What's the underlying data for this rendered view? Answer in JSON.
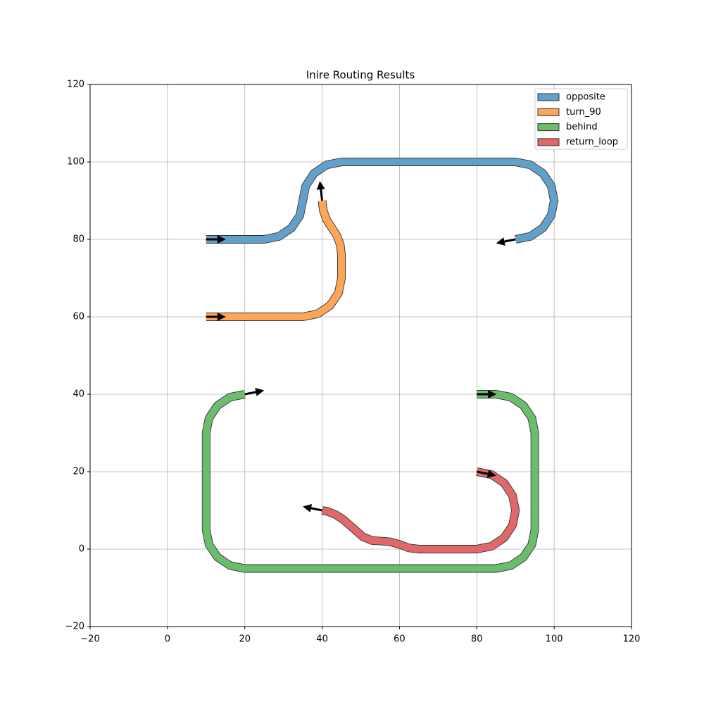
{
  "chart_data": {
    "type": "route",
    "title": "Inire Routing Results",
    "xlim": [
      -20,
      120
    ],
    "ylim": [
      -20,
      120
    ],
    "xticks": [
      {
        "value": -20,
        "label": "−20"
      },
      0,
      20,
      40,
      60,
      80,
      100,
      120
    ],
    "yticks": [
      {
        "value": -20,
        "label": "−20"
      },
      0,
      20,
      40,
      60,
      80,
      100,
      120
    ],
    "grid": true,
    "legend": "upper right",
    "alpha": 0.7,
    "series": [
      {
        "name": "opposite",
        "color": "#1f77b4",
        "x": [
          10,
          25,
          28.83,
          32.07,
          34.24,
          35,
          35.76,
          37.93,
          41.17,
          45,
          90,
          93.83,
          97.07,
          99.24,
          100,
          99.24,
          97.07,
          93.83,
          90
        ],
        "y": [
          80,
          80,
          80.76,
          82.93,
          86.17,
          90,
          93.83,
          97.07,
          99.24,
          100,
          100,
          99.24,
          97.07,
          93.83,
          90,
          86.17,
          82.93,
          80.76,
          80
        ]
      },
      {
        "name": "turn_90",
        "color": "#ff7f0e",
        "x": [
          10,
          35,
          38.83,
          42.07,
          44.24,
          45,
          45,
          44.71,
          43.86,
          42.5,
          41.13,
          40.29,
          40
        ],
        "y": [
          60,
          60,
          60.76,
          62.93,
          66.17,
          70,
          76,
          78.51,
          80.88,
          83,
          85.12,
          87.49,
          90
        ]
      },
      {
        "name": "behind",
        "color": "#2ca02c",
        "x": [
          80,
          85,
          88.83,
          92.07,
          94.24,
          95,
          95,
          94.24,
          92.07,
          88.83,
          85,
          20,
          16.17,
          12.93,
          10.76,
          10,
          10,
          10.76,
          12.93,
          16.17,
          20
        ],
        "y": [
          40,
          40,
          39.24,
          37.07,
          33.83,
          30,
          5,
          1.17,
          -2.07,
          -4.24,
          -5,
          -5,
          -4.24,
          -2.07,
          1.17,
          5,
          30,
          33.83,
          37.07,
          39.24,
          40
        ]
      },
      {
        "name": "return_loop",
        "color": "#d62728",
        "x": [
          80,
          83.83,
          87.07,
          89.24,
          90,
          89.24,
          87.07,
          83.83,
          80,
          65,
          62.5,
          60,
          57.5,
          55,
          53,
          50.5,
          48.5,
          47,
          45.5,
          43.5,
          41.5,
          40
        ],
        "y": [
          20,
          19.24,
          17.07,
          13.83,
          10,
          6.17,
          2.93,
          0.76,
          0,
          0,
          0.3,
          1.2,
          1.9,
          2.1,
          2.2,
          3.2,
          5,
          6.3,
          7.6,
          8.9,
          9.7,
          10
        ]
      }
    ]
  }
}
